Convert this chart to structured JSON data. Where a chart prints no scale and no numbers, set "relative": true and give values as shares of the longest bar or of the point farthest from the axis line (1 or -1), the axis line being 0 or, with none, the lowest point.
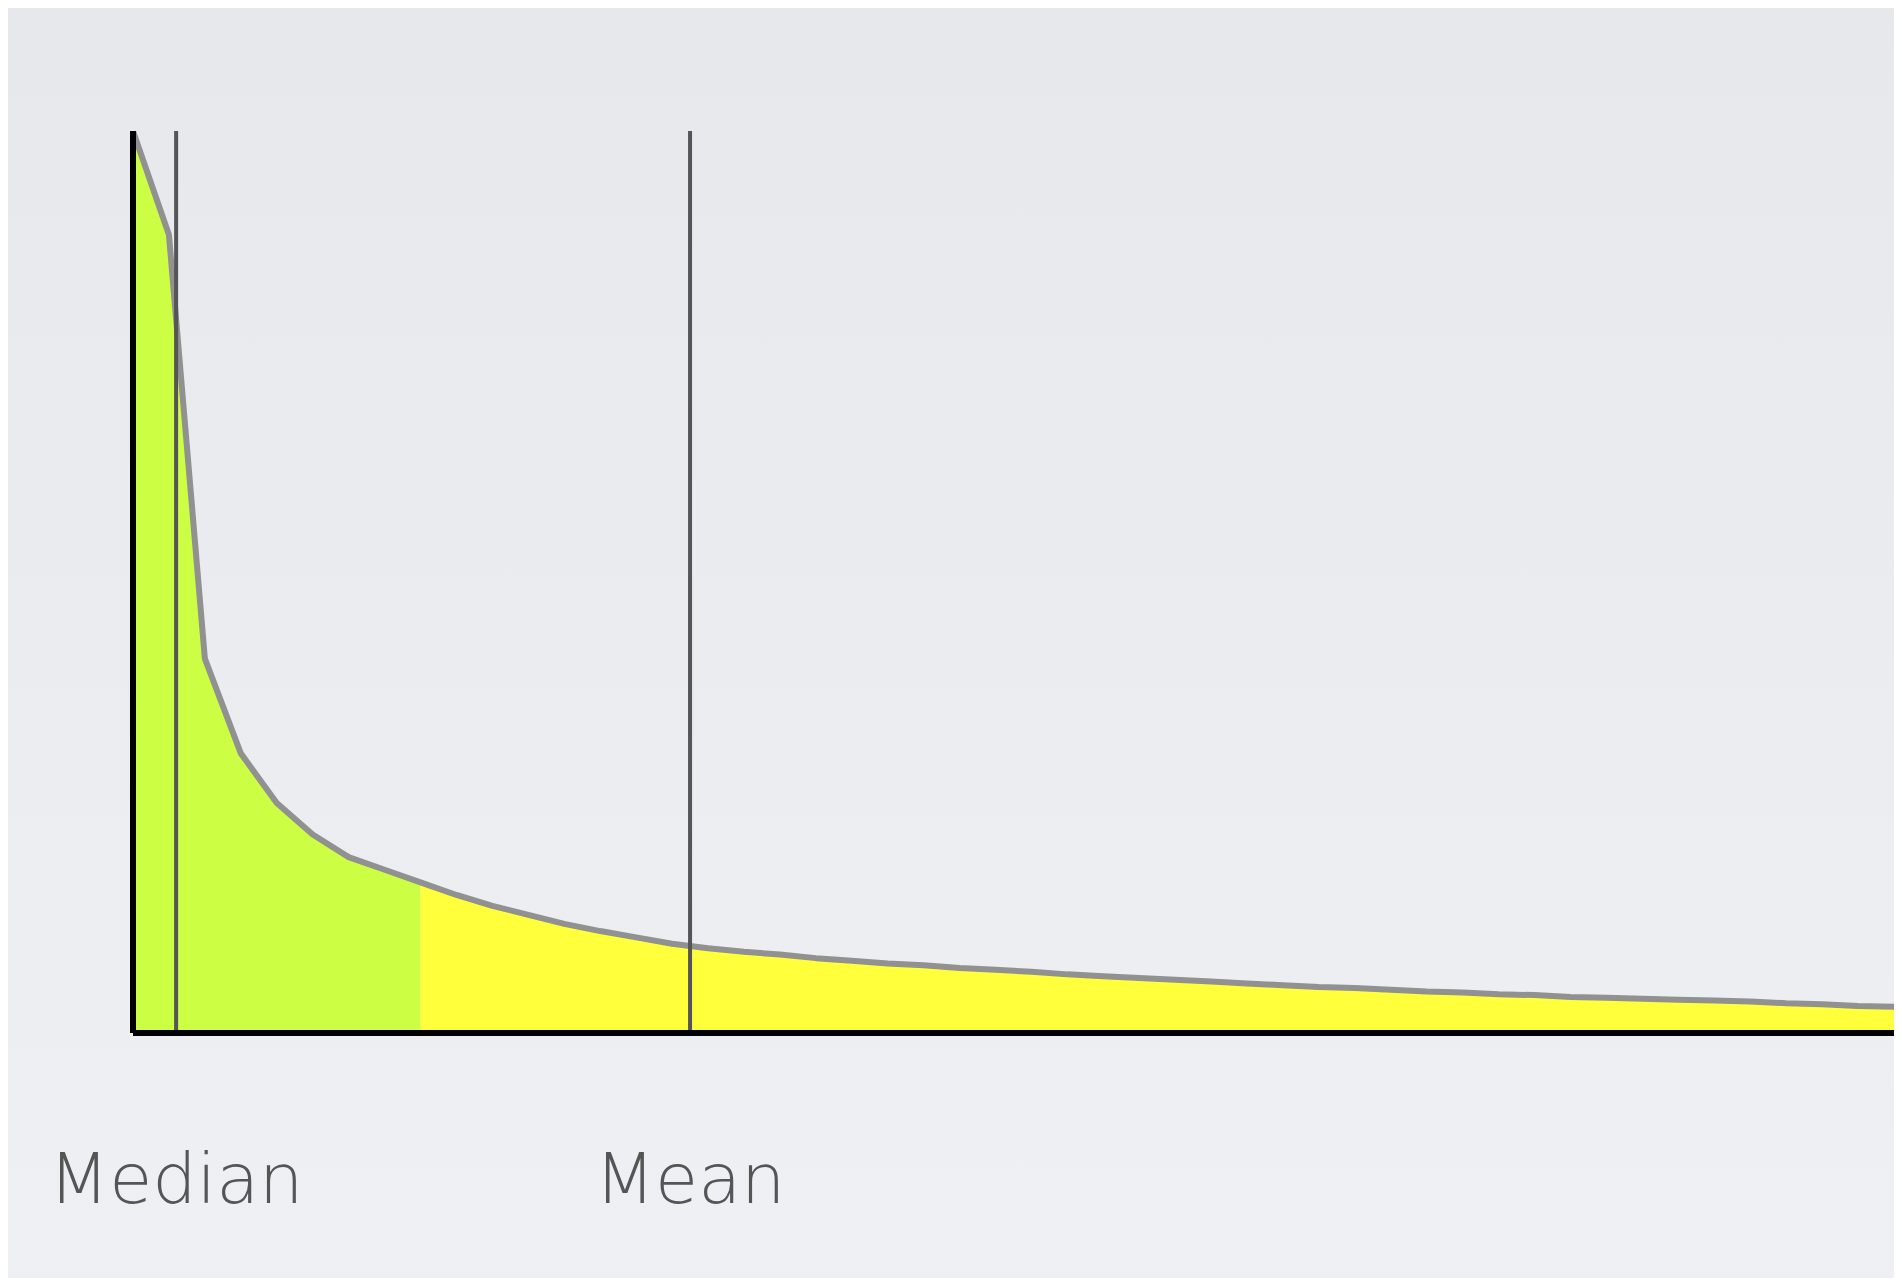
{
  "chart_data": {
    "type": "area",
    "relative": true,
    "grid": false,
    "legend": false,
    "categories": [
      null,
      null,
      null,
      null,
      null,
      null,
      null,
      null,
      null,
      null,
      null,
      null,
      null,
      null,
      null,
      null,
      null,
      null,
      null,
      null,
      null,
      null,
      null,
      null,
      null,
      null,
      null,
      null,
      null,
      null,
      null,
      null,
      null,
      null,
      null,
      null,
      null,
      null,
      null,
      null,
      null,
      null,
      null,
      null,
      null,
      null,
      null,
      null,
      null,
      null
    ],
    "series": [
      {
        "color": "#ccff44",
        "values": [
          1,
          0.885,
          0.415,
          0.31,
          0.255,
          0.22,
          0.195,
          0.181,
          0.167,
          null,
          null,
          null,
          null,
          null,
          null,
          null,
          null,
          null,
          null,
          null,
          null,
          null,
          null,
          null,
          null,
          null,
          null,
          null,
          null,
          null,
          null,
          null,
          null,
          null,
          null,
          null,
          null,
          null,
          null,
          null,
          null,
          null,
          null,
          null,
          null,
          null,
          null,
          null,
          null,
          null
        ]
      },
      {
        "color": "#ffff3c",
        "values": [
          null,
          null,
          null,
          null,
          null,
          null,
          null,
          null,
          0.167,
          0.153,
          0.141,
          0.131,
          0.121,
          0.113,
          0.106,
          0.099,
          0.094,
          0.09,
          0.087,
          0.083,
          0.08,
          0.077,
          0.075,
          0.072,
          0.07,
          0.068,
          0.065,
          0.063,
          0.061,
          0.059,
          0.057,
          0.055,
          0.053,
          0.051,
          0.05,
          0.048,
          0.046,
          0.045,
          0.043,
          0.042,
          0.04,
          0.039,
          0.038,
          0.037,
          0.036,
          0.035,
          0.033,
          0.032,
          0.03,
          0.029
        ]
      },
      {
        "type": "line",
        "color": "#919191",
        "values": [
          1,
          0.885,
          0.415,
          0.31,
          0.255,
          0.22,
          0.195,
          0.181,
          0.167,
          0.153,
          0.141,
          0.131,
          0.121,
          0.113,
          0.106,
          0.099,
          0.094,
          0.09,
          0.087,
          0.083,
          0.08,
          0.077,
          0.075,
          0.072,
          0.07,
          0.068,
          0.065,
          0.063,
          0.061,
          0.059,
          0.057,
          0.055,
          0.053,
          0.051,
          0.05,
          0.048,
          0.046,
          0.045,
          0.043,
          0.042,
          0.04,
          0.039,
          0.038,
          0.037,
          0.036,
          0.035,
          0.033,
          0.032,
          0.03,
          0.029
        ]
      }
    ],
    "annotations": [
      "Median",
      "Mean"
    ]
  }
}
